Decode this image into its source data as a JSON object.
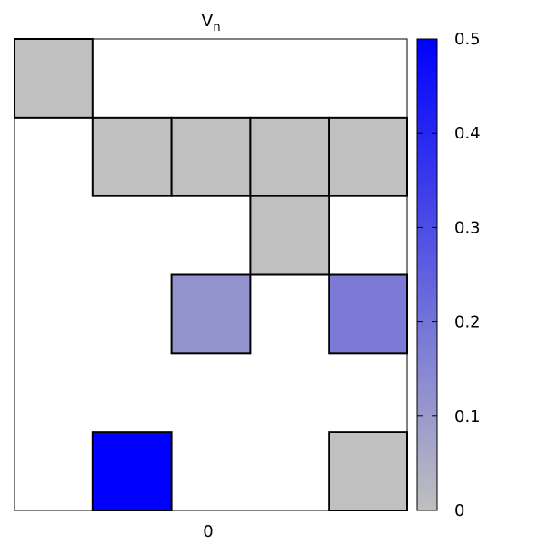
{
  "chart_data": {
    "type": "heatmap",
    "title": {
      "main": "V",
      "subscript": "n"
    },
    "x_tick_labels": [
      "0"
    ],
    "grid": {
      "rows": 6,
      "cols": 5
    },
    "colorbar": {
      "min": 0,
      "max": 0.5,
      "ticks": [
        0,
        0.1,
        0.2,
        0.3,
        0.4,
        0.5
      ],
      "tick_labels": [
        "0",
        "0.1",
        "0.2",
        "0.3",
        "0.4",
        "0.5"
      ],
      "color_min": "#c0c0c0",
      "color_max": "#0000ff"
    },
    "cells": [
      {
        "row": 0,
        "col": 0,
        "value": 0
      },
      {
        "row": 1,
        "col": 1,
        "value": 0
      },
      {
        "row": 1,
        "col": 2,
        "value": 0
      },
      {
        "row": 1,
        "col": 3,
        "value": 0
      },
      {
        "row": 1,
        "col": 4,
        "value": 0
      },
      {
        "row": 2,
        "col": 3,
        "value": 0
      },
      {
        "row": 3,
        "col": 2,
        "value": 0.12
      },
      {
        "row": 3,
        "col": 4,
        "value": 0.18
      },
      {
        "row": 5,
        "col": 1,
        "value": 0.5
      },
      {
        "row": 5,
        "col": 4,
        "value": 0
      }
    ]
  }
}
